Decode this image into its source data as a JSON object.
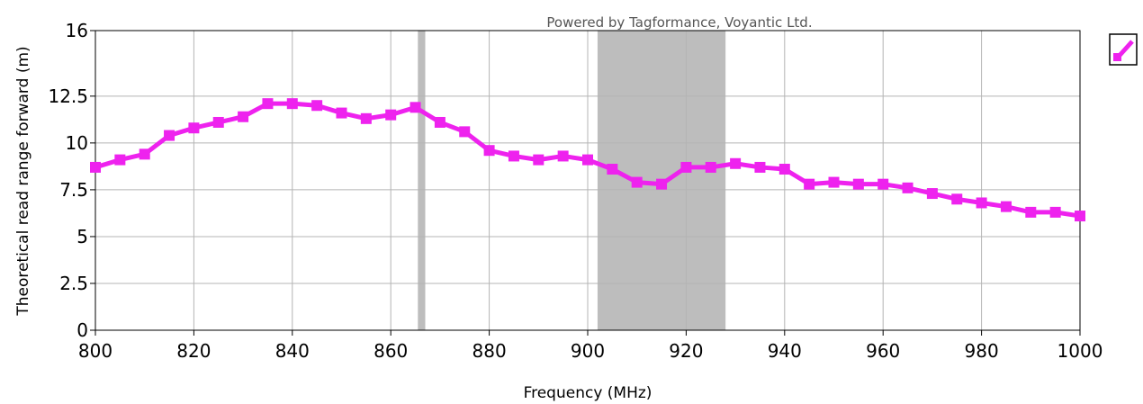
{
  "chart_data": {
    "type": "line",
    "title": "",
    "watermark": "Powered by Tagformance, Voyantic Ltd.",
    "xlabel": "Frequency (MHz)",
    "ylabel": "Theoretical read range forward (m)",
    "xlim": [
      800,
      1000
    ],
    "ylim": [
      0,
      16
    ],
    "x_ticks": [
      800,
      820,
      840,
      860,
      880,
      900,
      920,
      940,
      960,
      980,
      1000
    ],
    "y_ticks": [
      {
        "value": 0,
        "label": "0"
      },
      {
        "value": 2.5,
        "label": "2.5"
      },
      {
        "value": 5,
        "label": "5"
      },
      {
        "value": 7.5,
        "label": "7.5"
      },
      {
        "value": 10,
        "label": "10"
      },
      {
        "value": 12.5,
        "label": "12.5"
      },
      {
        "value": 16,
        "label": "16"
      }
    ],
    "grid": true,
    "legend": "top-right",
    "colors": {
      "series": "#ee22ee",
      "band": "#bdbdbd",
      "grid": "#b4b4b4",
      "axis": "#000000"
    },
    "shaded_bands": [
      {
        "from": 865.5,
        "to": 867
      },
      {
        "from": 902,
        "to": 928
      }
    ],
    "series": [
      {
        "x": [
          800,
          805,
          810,
          815,
          820,
          825,
          830,
          835,
          840,
          845,
          850,
          855,
          860,
          865,
          870,
          875,
          880,
          885,
          890,
          895,
          900,
          905,
          910,
          915,
          920,
          925,
          930,
          935,
          940,
          945,
          950,
          955,
          960,
          965,
          970,
          975,
          980,
          985,
          990,
          995,
          1000
        ],
        "values": [
          8.7,
          9.1,
          9.4,
          10.4,
          10.8,
          11.1,
          11.4,
          12.1,
          12.1,
          12.0,
          11.6,
          11.3,
          11.5,
          11.9,
          11.1,
          10.6,
          9.6,
          9.3,
          9.1,
          9.3,
          9.1,
          8.6,
          7.9,
          7.8,
          8.7,
          8.7,
          8.9,
          8.7,
          8.6,
          7.8,
          7.9,
          7.8,
          7.8,
          7.6,
          7.3,
          7.0,
          6.8,
          6.6,
          6.3,
          6.3,
          6.1
        ]
      }
    ]
  }
}
